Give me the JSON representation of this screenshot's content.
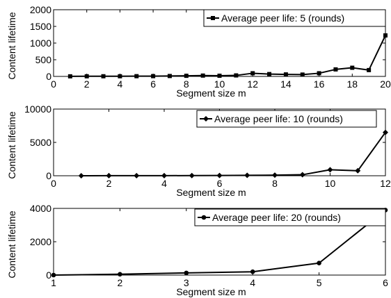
{
  "chart_data": [
    {
      "type": "line",
      "xlabel": "Segment size m",
      "ylabel": "Content lifetime",
      "xlim": [
        0,
        20
      ],
      "ylim": [
        0,
        2000
      ],
      "xticks": [
        "0",
        "2",
        "4",
        "6",
        "8",
        "10",
        "12",
        "14",
        "16",
        "18",
        "20"
      ],
      "yticks": [
        "0",
        "500",
        "1000",
        "1500",
        "2000"
      ],
      "grid": false,
      "legend_position": "top-right",
      "series": [
        {
          "name": "Average peer life: 5 (rounds)",
          "marker": "square",
          "x": [
            1,
            2,
            3,
            4,
            5,
            6,
            7,
            8,
            9,
            10,
            11,
            12,
            13,
            14,
            15,
            16,
            17,
            18,
            19,
            20
          ],
          "values": [
            3,
            4,
            5,
            5,
            7,
            8,
            12,
            18,
            25,
            20,
            30,
            95,
            70,
            60,
            55,
            95,
            210,
            260,
            190,
            1230
          ]
        }
      ]
    },
    {
      "type": "line",
      "xlabel": "Segment size m",
      "ylabel": "Content lifetime",
      "xlim": [
        0,
        12
      ],
      "ylim": [
        0,
        10000
      ],
      "xticks": [
        "0",
        "2",
        "4",
        "6",
        "8",
        "10",
        "12"
      ],
      "yticks": [
        "0",
        "5000",
        "10000"
      ],
      "grid": false,
      "legend_position": "top-right",
      "series": [
        {
          "name": "Average peer life: 10 (rounds)",
          "marker": "diamond",
          "x": [
            1,
            2,
            3,
            4,
            5,
            6,
            7,
            8,
            9,
            10,
            11,
            12
          ],
          "values": [
            5,
            8,
            10,
            15,
            25,
            40,
            60,
            90,
            150,
            900,
            750,
            6500
          ]
        }
      ]
    },
    {
      "type": "line",
      "xlabel": "Segment size m",
      "ylabel": "Content lifetime",
      "xlim": [
        1,
        6
      ],
      "ylim": [
        0,
        4000
      ],
      "xticks": [
        "1",
        "2",
        "3",
        "4",
        "5",
        "6"
      ],
      "yticks": [
        "0",
        "2000",
        "4000"
      ],
      "grid": false,
      "legend_position": "top-right",
      "series": [
        {
          "name": "Average peer life: 20 (rounds)",
          "marker": "circle",
          "x": [
            1,
            2,
            3,
            4,
            5,
            6
          ],
          "values": [
            0,
            50,
            130,
            200,
            720,
            3900
          ]
        }
      ]
    }
  ]
}
